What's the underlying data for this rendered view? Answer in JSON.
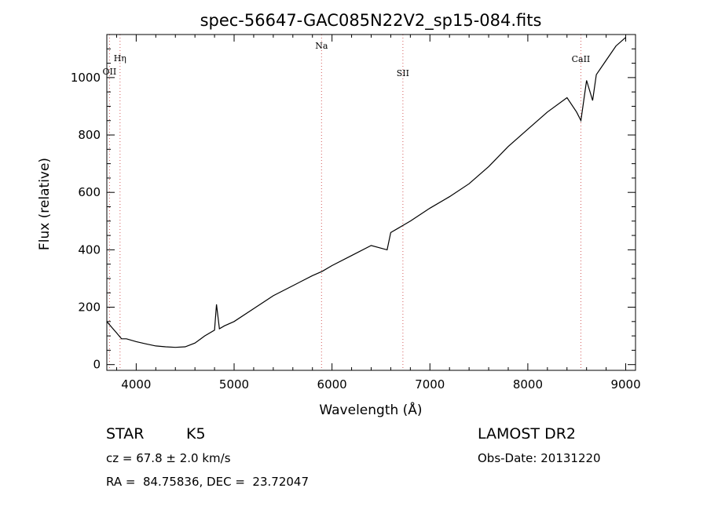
{
  "chart_data": {
    "type": "line",
    "title": "spec-56647-GAC085N22V2_sp15-084.fits",
    "xlabel": "Wavelength (Å)",
    "ylabel": "Flux (relative)",
    "xlim": [
      3700,
      9100
    ],
    "ylim": [
      -20,
      1150
    ],
    "xticks": [
      4000,
      5000,
      6000,
      7000,
      8000,
      9000
    ],
    "yticks": [
      0,
      200,
      400,
      600,
      800,
      1000
    ],
    "grid": false,
    "series": [
      {
        "line_color": "#000000",
        "x": [
          3700,
          3750,
          3800,
          3850,
          3900,
          4000,
          4100,
          4200,
          4300,
          4400,
          4500,
          4600,
          4700,
          4800,
          4820,
          4850,
          4900,
          5000,
          5200,
          5400,
          5600,
          5800,
          5900,
          6000,
          6200,
          6400,
          6563,
          6600,
          6800,
          7000,
          7200,
          7400,
          7600,
          7800,
          8000,
          8200,
          8400,
          8498,
          8542,
          8600,
          8662,
          8700,
          8800,
          8900,
          9000
        ],
        "y": [
          150,
          130,
          110,
          90,
          90,
          80,
          72,
          65,
          62,
          60,
          62,
          75,
          100,
          120,
          210,
          125,
          135,
          150,
          195,
          240,
          275,
          310,
          325,
          345,
          380,
          415,
          400,
          460,
          500,
          545,
          585,
          630,
          690,
          760,
          820,
          880,
          930,
          880,
          850,
          990,
          920,
          1010,
          1060,
          1110,
          1140
        ]
      }
    ],
    "annotations": [
      {
        "label": "Hη",
        "x": 3835
      },
      {
        "label": "OII",
        "x": 3727
      },
      {
        "label": "Na",
        "x": 5893
      },
      {
        "label": "SII",
        "x": 6724
      },
      {
        "label": "CaII",
        "x": 8542
      }
    ]
  },
  "info": {
    "object_class": "STAR",
    "subclass": "K5",
    "redshift": "cz = 67.8 ± 2.0 km/s",
    "coords": "RA =  84.75836, DEC =  23.72047",
    "survey": "LAMOST DR2",
    "obs_date": "Obs-Date: 20131220"
  }
}
